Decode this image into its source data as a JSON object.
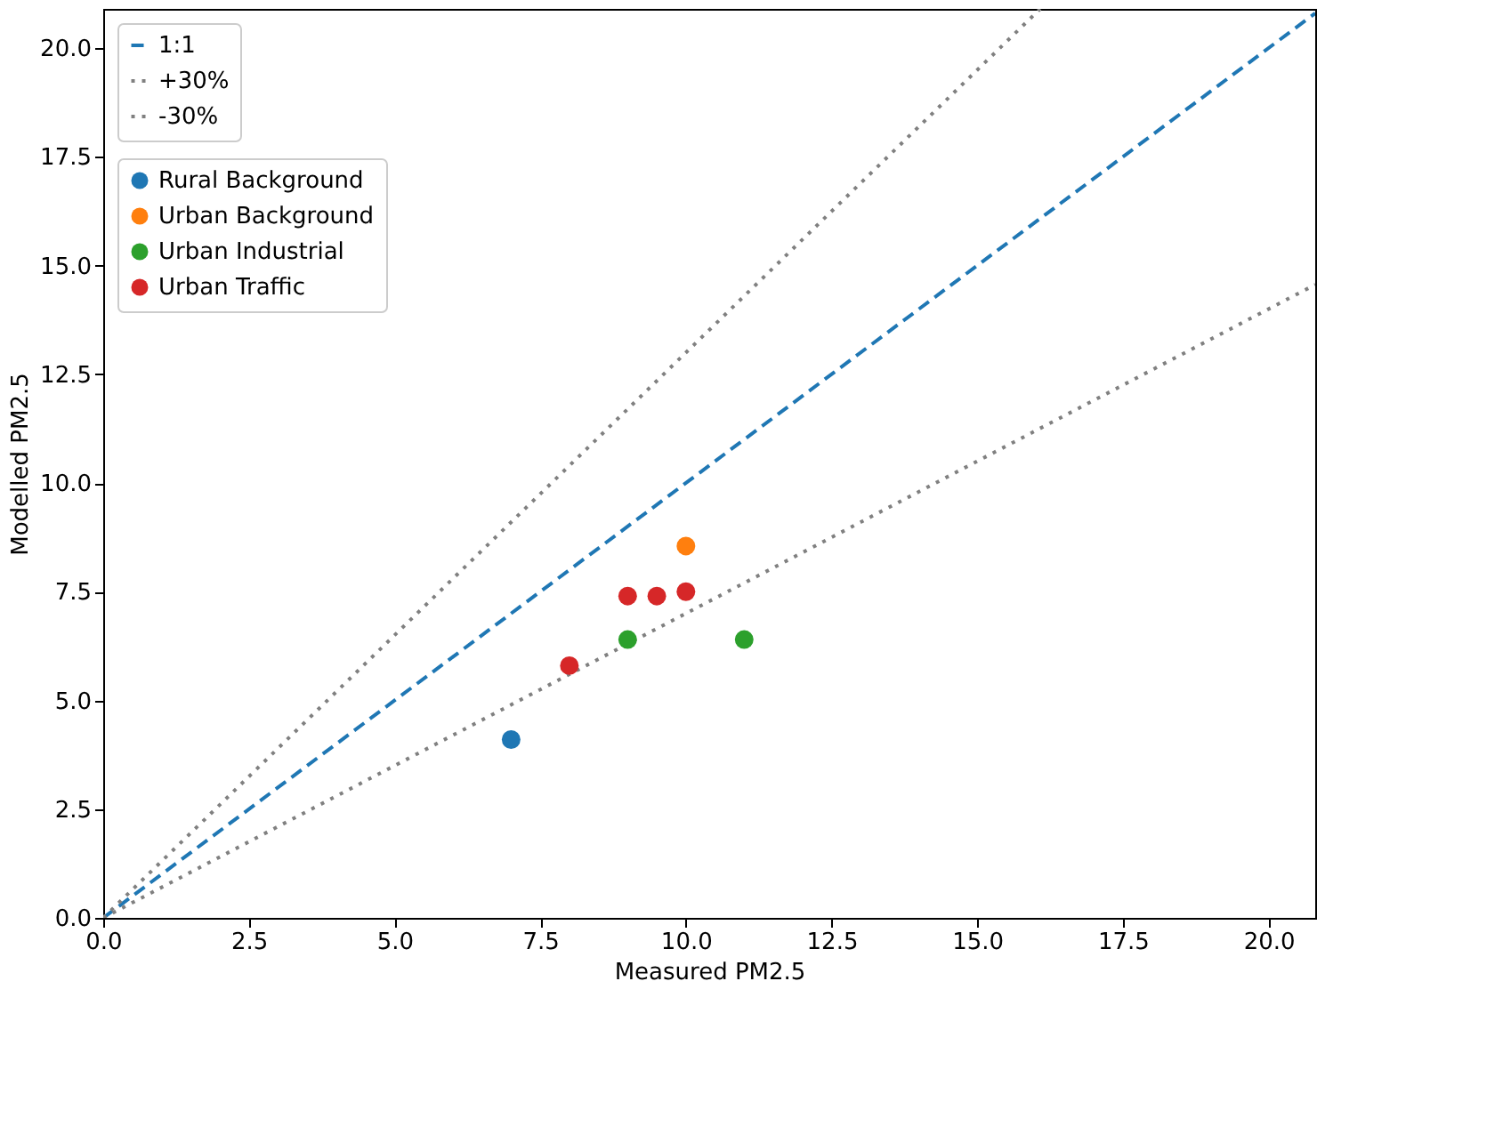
{
  "chart_data": {
    "type": "scatter",
    "xlabel": "Measured PM2.5",
    "ylabel": "Modelled PM2.5",
    "xlim": [
      0,
      20.8
    ],
    "ylim": [
      0,
      20.9
    ],
    "xticks": [
      {
        "value": 0,
        "label": "0.0"
      },
      2.5,
      {
        "value": 5,
        "label": "5.0"
      },
      7.5,
      {
        "value": 10,
        "label": "10.0"
      },
      12.5,
      {
        "value": 15,
        "label": "15.0"
      },
      17.5,
      {
        "value": 20,
        "label": "20.0"
      }
    ],
    "yticks": [
      {
        "value": 0,
        "label": "0.0"
      },
      2.5,
      {
        "value": 5,
        "label": "5.0"
      },
      7.5,
      {
        "value": 10,
        "label": "10.0"
      },
      12.5,
      {
        "value": 15,
        "label": "15.0"
      },
      17.5,
      {
        "value": 20,
        "label": "20.0"
      }
    ],
    "grid": false,
    "legend": "top left",
    "series": [
      {
        "name": "1:1",
        "type": "line",
        "line_style": "dashed",
        "color": "#1f77b4",
        "x": [
          0,
          20.8
        ],
        "values": [
          0,
          20.8
        ]
      },
      {
        "name": "+30%",
        "type": "line",
        "line_style": "dotted",
        "color": "#808080",
        "x": [
          0,
          16.08
        ],
        "values": [
          0,
          20.9
        ]
      },
      {
        "name": "-30%",
        "type": "line",
        "line_style": "dotted",
        "color": "#808080",
        "x": [
          0,
          20.8
        ],
        "values": [
          0,
          14.56
        ]
      },
      {
        "name": "Rural Background",
        "marker": "circle",
        "color": "#1f77b4",
        "x": [
          7.0
        ],
        "values": [
          4.1
        ]
      },
      {
        "name": "Urban Background",
        "marker": "circle",
        "color": "#ff7f0e",
        "x": [
          10.0
        ],
        "values": [
          8.55
        ]
      },
      {
        "name": "Urban Industrial",
        "marker": "circle",
        "color": "#2ca02c",
        "x": [
          9.0,
          11.0
        ],
        "values": [
          6.4,
          6.4
        ]
      },
      {
        "name": "Urban Traffic",
        "marker": "circle",
        "color": "#d62728",
        "x": [
          8.0,
          9.0,
          9.5,
          10.0
        ],
        "values": [
          5.8,
          7.4,
          7.4,
          7.5
        ]
      }
    ]
  }
}
